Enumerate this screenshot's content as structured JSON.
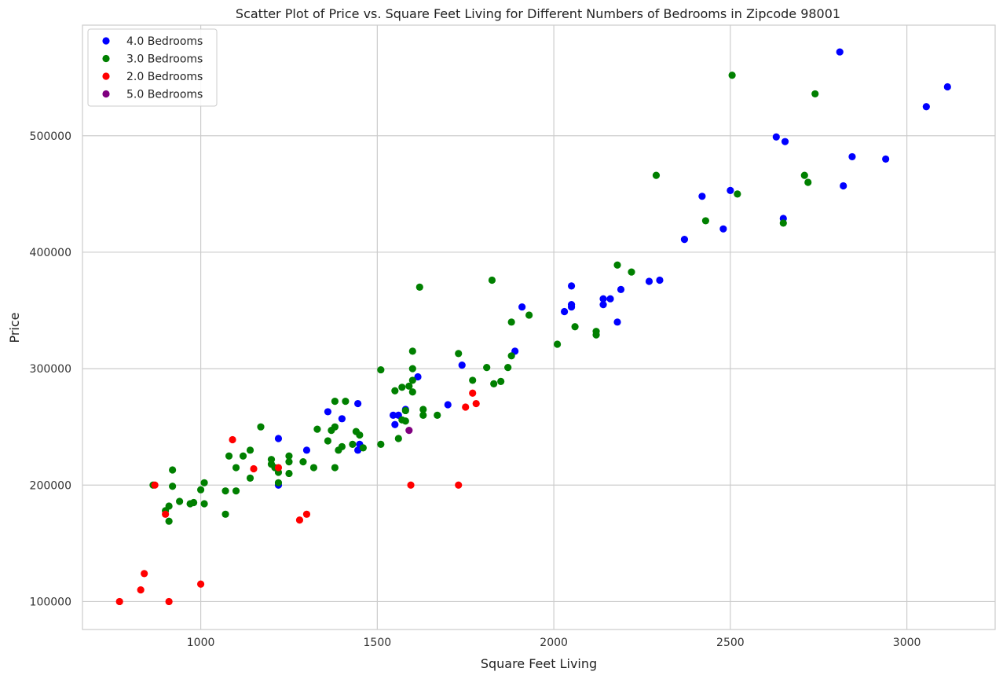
{
  "chart_data": {
    "type": "scatter",
    "title": "Scatter Plot of Price vs. Square Feet Living for Different Numbers of Bedrooms in Zipcode 98001",
    "xlabel": "Square Feet Living",
    "ylabel": "Price",
    "xlim": [
      665,
      3250
    ],
    "ylim": [
      76000,
      595000
    ],
    "xticks": [
      1000,
      1500,
      2000,
      2500,
      3000
    ],
    "yticks": [
      100000,
      200000,
      300000,
      400000,
      500000
    ],
    "grid": true,
    "legend_position": "top-left",
    "series": [
      {
        "name": "4.0 Bedrooms",
        "color": "#0000ff",
        "points": [
          [
            2810,
            572000
          ],
          [
            3115,
            542000
          ],
          [
            3055,
            525000
          ],
          [
            2630,
            499000
          ],
          [
            2655,
            495000
          ],
          [
            2845,
            482000
          ],
          [
            2940,
            480000
          ],
          [
            2500,
            453000
          ],
          [
            2820,
            457000
          ],
          [
            2420,
            448000
          ],
          [
            2650,
            429000
          ],
          [
            2480,
            420000
          ],
          [
            2370,
            411000
          ],
          [
            2300,
            376000
          ],
          [
            2270,
            375000
          ],
          [
            2050,
            371000
          ],
          [
            2190,
            368000
          ],
          [
            2140,
            360000
          ],
          [
            2160,
            360000
          ],
          [
            2050,
            355000
          ],
          [
            2050,
            353000
          ],
          [
            2140,
            355000
          ],
          [
            1910,
            353000
          ],
          [
            2030,
            349000
          ],
          [
            2180,
            340000
          ],
          [
            1890,
            315000
          ],
          [
            1740,
            303000
          ],
          [
            1615,
            293000
          ],
          [
            1445,
            270000
          ],
          [
            1700,
            269000
          ],
          [
            1360,
            263000
          ],
          [
            1580,
            265000
          ],
          [
            1545,
            260000
          ],
          [
            1560,
            260000
          ],
          [
            1400,
            257000
          ],
          [
            1550,
            252000
          ],
          [
            1220,
            240000
          ],
          [
            1450,
            235000
          ],
          [
            1445,
            230000
          ],
          [
            1300,
            230000
          ],
          [
            1220,
            200000
          ]
        ]
      },
      {
        "name": "3.0 Bedrooms",
        "color": "#008000",
        "points": [
          [
            2505,
            552000
          ],
          [
            2740,
            536000
          ],
          [
            2290,
            466000
          ],
          [
            2710,
            466000
          ],
          [
            2720,
            460000
          ],
          [
            2520,
            450000
          ],
          [
            2430,
            427000
          ],
          [
            2650,
            425000
          ],
          [
            2180,
            389000
          ],
          [
            2220,
            383000
          ],
          [
            1825,
            376000
          ],
          [
            1620,
            370000
          ],
          [
            1930,
            346000
          ],
          [
            1880,
            340000
          ],
          [
            2060,
            336000
          ],
          [
            2120,
            332000
          ],
          [
            2120,
            329000
          ],
          [
            2010,
            321000
          ],
          [
            1600,
            315000
          ],
          [
            1730,
            313000
          ],
          [
            1880,
            311000
          ],
          [
            1810,
            301000
          ],
          [
            1870,
            301000
          ],
          [
            1600,
            300000
          ],
          [
            1510,
            299000
          ],
          [
            1770,
            290000
          ],
          [
            1600,
            290000
          ],
          [
            1850,
            289000
          ],
          [
            1830,
            287000
          ],
          [
            1590,
            285000
          ],
          [
            1570,
            284000
          ],
          [
            1550,
            281000
          ],
          [
            1600,
            280000
          ],
          [
            1380,
            272000
          ],
          [
            1410,
            272000
          ],
          [
            1630,
            265000
          ],
          [
            1580,
            264000
          ],
          [
            1630,
            260000
          ],
          [
            1670,
            260000
          ],
          [
            1570,
            256000
          ],
          [
            1580,
            255000
          ],
          [
            1170,
            250000
          ],
          [
            1380,
            250000
          ],
          [
            1330,
            248000
          ],
          [
            1370,
            247000
          ],
          [
            1440,
            246000
          ],
          [
            1450,
            243000
          ],
          [
            1560,
            240000
          ],
          [
            1360,
            238000
          ],
          [
            1510,
            235000
          ],
          [
            1430,
            235000
          ],
          [
            1400,
            233000
          ],
          [
            1460,
            232000
          ],
          [
            1140,
            230000
          ],
          [
            1390,
            230000
          ],
          [
            1080,
            225000
          ],
          [
            1120,
            225000
          ],
          [
            1250,
            225000
          ],
          [
            1200,
            222000
          ],
          [
            1250,
            220000
          ],
          [
            1290,
            220000
          ],
          [
            1200,
            218000
          ],
          [
            1380,
            215000
          ],
          [
            1100,
            215000
          ],
          [
            1320,
            215000
          ],
          [
            1210,
            215000
          ],
          [
            1220,
            211000
          ],
          [
            1250,
            210000
          ],
          [
            1140,
            206000
          ],
          [
            1220,
            202000
          ],
          [
            920,
            213000
          ],
          [
            1010,
            202000
          ],
          [
            865,
            200000
          ],
          [
            920,
            199000
          ],
          [
            1000,
            196000
          ],
          [
            1070,
            195000
          ],
          [
            1100,
            195000
          ],
          [
            940,
            186000
          ],
          [
            980,
            185000
          ],
          [
            970,
            184000
          ],
          [
            1010,
            184000
          ],
          [
            910,
            182000
          ],
          [
            900,
            178000
          ],
          [
            1070,
            175000
          ],
          [
            910,
            169000
          ]
        ]
      },
      {
        "name": "2.0 Bedrooms",
        "color": "#ff0000",
        "points": [
          [
            1770,
            279000
          ],
          [
            1780,
            270000
          ],
          [
            1750,
            267000
          ],
          [
            1090,
            239000
          ],
          [
            1220,
            215000
          ],
          [
            1150,
            214000
          ],
          [
            870,
            200000
          ],
          [
            1595,
            200000
          ],
          [
            1730,
            200000
          ],
          [
            1300,
            175000
          ],
          [
            900,
            175000
          ],
          [
            1280,
            170000
          ],
          [
            840,
            124000
          ],
          [
            1000,
            115000
          ],
          [
            830,
            110000
          ],
          [
            770,
            100000
          ],
          [
            910,
            100000
          ]
        ]
      },
      {
        "name": "5.0 Bedrooms",
        "color": "#800080",
        "points": [
          [
            1590,
            247000
          ]
        ]
      }
    ]
  }
}
